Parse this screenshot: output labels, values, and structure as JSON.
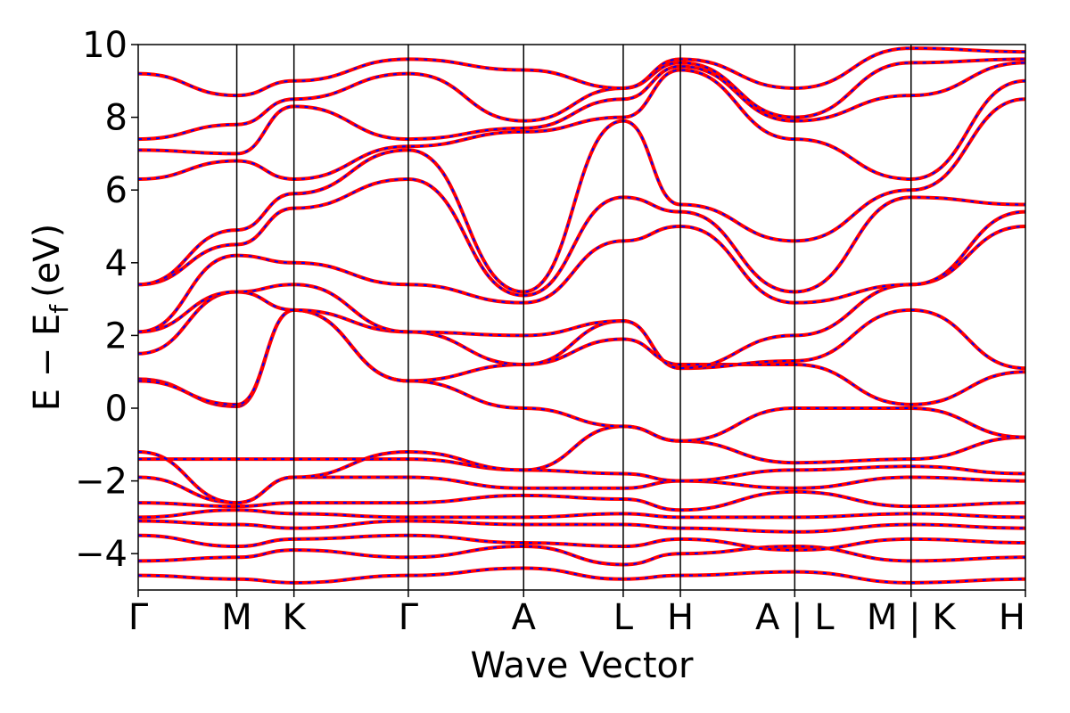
{
  "chart_data": {
    "type": "line",
    "title": "",
    "xlabel": "Wave Vector",
    "ylabel": "E − E_f (eV)",
    "ylabel_main": "E − E",
    "ylabel_sub": "f",
    "ylabel_unit": "(eV)",
    "ylim": [
      -5,
      10
    ],
    "yticks": [
      -4,
      -2,
      0,
      2,
      4,
      6,
      8,
      10
    ],
    "ytick_labels": [
      "−4",
      "−2",
      "0",
      "2",
      "4",
      "6",
      "8",
      "10"
    ],
    "grid": false,
    "colors": {
      "dft": "#ff0000",
      "wannier": "#0000ff",
      "axes": "#000000"
    },
    "kpath": {
      "labels": [
        "Γ",
        "M",
        "K",
        "Γ",
        "A",
        "L",
        "H",
        "A | L",
        "M | K",
        "H"
      ],
      "positions": [
        0,
        1.0,
        1.58,
        2.74,
        3.91,
        4.92,
        5.5,
        6.66,
        7.84,
        9.0
      ]
    },
    "series": [
      {
        "x": [
          0,
          1.0,
          1.58,
          2.74,
          3.91,
          4.92,
          5.5,
          6.66,
          7.84,
          9.0
        ],
        "values": [
          -4.6,
          -4.7,
          -4.8,
          -4.6,
          -4.4,
          -4.7,
          -4.6,
          -4.5,
          -4.8,
          -4.7
        ]
      },
      {
        "x": [
          0,
          1.0,
          1.58,
          2.74,
          3.91,
          4.92,
          5.5,
          6.66,
          7.84,
          9.0
        ],
        "values": [
          -4.2,
          -4.1,
          -3.9,
          -4.1,
          -3.8,
          -4.3,
          -4.0,
          -3.8,
          -4.2,
          -4.1
        ]
      },
      {
        "x": [
          0,
          1.0,
          1.58,
          2.74,
          3.91,
          4.92,
          5.5,
          6.66,
          7.84,
          9.0
        ],
        "values": [
          -3.5,
          -3.8,
          -3.6,
          -3.5,
          -3.7,
          -3.8,
          -3.6,
          -3.9,
          -3.6,
          -3.7
        ]
      },
      {
        "x": [
          0,
          1.0,
          1.58,
          2.74,
          3.91,
          4.92,
          5.5,
          6.66,
          7.84,
          9.0
        ],
        "values": [
          -3.1,
          -3.2,
          -3.3,
          -3.1,
          -3.2,
          -3.2,
          -3.3,
          -3.4,
          -3.2,
          -3.3
        ]
      },
      {
        "x": [
          0,
          1.0,
          1.58,
          2.74,
          3.91,
          4.92,
          5.5,
          6.66,
          7.84,
          9.0
        ],
        "values": [
          -3.0,
          -2.8,
          -2.9,
          -3.0,
          -3.0,
          -2.9,
          -3.0,
          -3.0,
          -2.9,
          -3.0
        ]
      },
      {
        "x": [
          0,
          1.0,
          1.58,
          2.74,
          3.91,
          4.92,
          5.5,
          6.66,
          7.84,
          9.0
        ],
        "values": [
          -2.6,
          -2.7,
          -2.6,
          -2.6,
          -2.4,
          -2.5,
          -2.8,
          -2.3,
          -2.7,
          -2.6
        ]
      },
      {
        "x": [
          0,
          1.0,
          1.58,
          2.74,
          3.91,
          4.92,
          5.5,
          6.66,
          7.84,
          9.0
        ],
        "values": [
          -1.9,
          -2.6,
          -1.9,
          -1.9,
          -2.2,
          -2.2,
          -2.0,
          -2.2,
          -1.9,
          -2.0
        ]
      },
      {
        "x": [
          0,
          1.0,
          1.58,
          2.74,
          3.91,
          4.92,
          5.5,
          6.66,
          7.84,
          9.0
        ],
        "values": [
          -1.4,
          -1.4,
          -1.4,
          -1.4,
          -1.7,
          -1.8,
          -2.0,
          -1.7,
          -1.6,
          -1.8
        ]
      },
      {
        "x": [
          0,
          1.0,
          1.58,
          2.74,
          3.91,
          4.92,
          5.5,
          6.66,
          7.84,
          9.0
        ],
        "values": [
          -1.2,
          -2.6,
          -1.9,
          -1.2,
          -1.7,
          -0.5,
          -0.9,
          -1.5,
          -1.4,
          -0.8
        ]
      },
      {
        "x": [
          0,
          1.0,
          1.58,
          2.74,
          3.91,
          4.92,
          5.5,
          6.66,
          7.84,
          9.0
        ],
        "values": [
          0.8,
          0.05,
          2.7,
          0.75,
          0.0,
          -0.5,
          -0.9,
          0.0,
          0.0,
          -0.8
        ]
      },
      {
        "x": [
          0,
          1.0,
          1.58,
          2.74,
          3.91,
          4.92,
          5.5,
          6.66,
          7.84,
          9.0
        ],
        "values": [
          0.75,
          0.1,
          2.7,
          0.75,
          1.2,
          1.9,
          1.2,
          1.2,
          0.1,
          1.0
        ]
      },
      {
        "x": [
          0,
          1.0,
          1.58,
          2.74,
          3.91,
          4.92,
          5.5,
          6.66,
          7.84,
          9.0
        ],
        "values": [
          1.5,
          3.2,
          2.7,
          2.1,
          1.2,
          2.4,
          1.1,
          1.3,
          2.7,
          1.1
        ]
      },
      {
        "x": [
          0,
          1.0,
          1.58,
          2.74,
          3.91,
          4.92,
          5.5,
          6.66,
          7.84,
          9.0
        ],
        "values": [
          2.1,
          3.2,
          3.4,
          2.1,
          2.0,
          2.4,
          1.1,
          2.0,
          3.4,
          5.0
        ]
      },
      {
        "x": [
          0,
          1.0,
          1.58,
          2.74,
          3.91,
          4.92,
          5.5,
          6.66,
          7.84,
          9.0
        ],
        "values": [
          2.1,
          4.2,
          4.0,
          3.4,
          2.9,
          4.6,
          5.0,
          2.9,
          3.4,
          5.4
        ]
      },
      {
        "x": [
          0,
          1.0,
          1.58,
          2.74,
          3.91,
          4.92,
          5.5,
          6.66,
          7.84,
          9.0
        ],
        "values": [
          3.4,
          4.5,
          5.5,
          6.3,
          3.1,
          5.8,
          5.4,
          3.2,
          5.8,
          5.6
        ]
      },
      {
        "x": [
          0,
          1.0,
          1.58,
          2.74,
          3.91,
          4.92,
          5.5,
          6.66,
          7.84,
          9.0
        ],
        "values": [
          3.4,
          4.9,
          5.9,
          7.1,
          3.2,
          7.9,
          5.6,
          4.6,
          6.0,
          8.5
        ]
      },
      {
        "x": [
          0,
          1.0,
          1.58,
          2.74,
          3.91,
          4.92,
          5.5,
          6.66,
          7.84,
          9.0
        ],
        "values": [
          6.3,
          6.8,
          6.3,
          7.2,
          7.6,
          8.0,
          9.3,
          7.4,
          6.3,
          9.0
        ]
      },
      {
        "x": [
          0,
          1.0,
          1.58,
          2.74,
          3.91,
          4.92,
          5.5,
          6.66,
          7.84,
          9.0
        ],
        "values": [
          7.1,
          7.0,
          8.3,
          7.4,
          7.7,
          8.5,
          9.4,
          7.9,
          8.6,
          9.5
        ]
      },
      {
        "x": [
          0,
          1.0,
          1.58,
          2.74,
          3.91,
          4.92,
          5.5,
          6.66,
          7.84,
          9.0
        ],
        "values": [
          7.4,
          7.8,
          8.5,
          9.2,
          7.9,
          8.8,
          9.5,
          8.0,
          9.5,
          9.6
        ]
      },
      {
        "x": [
          0,
          1.0,
          1.58,
          2.74,
          3.91,
          4.92,
          5.5,
          6.66,
          7.84,
          9.0
        ],
        "values": [
          9.2,
          8.6,
          9.0,
          9.6,
          9.3,
          8.8,
          9.6,
          8.8,
          9.9,
          9.8
        ]
      }
    ]
  }
}
